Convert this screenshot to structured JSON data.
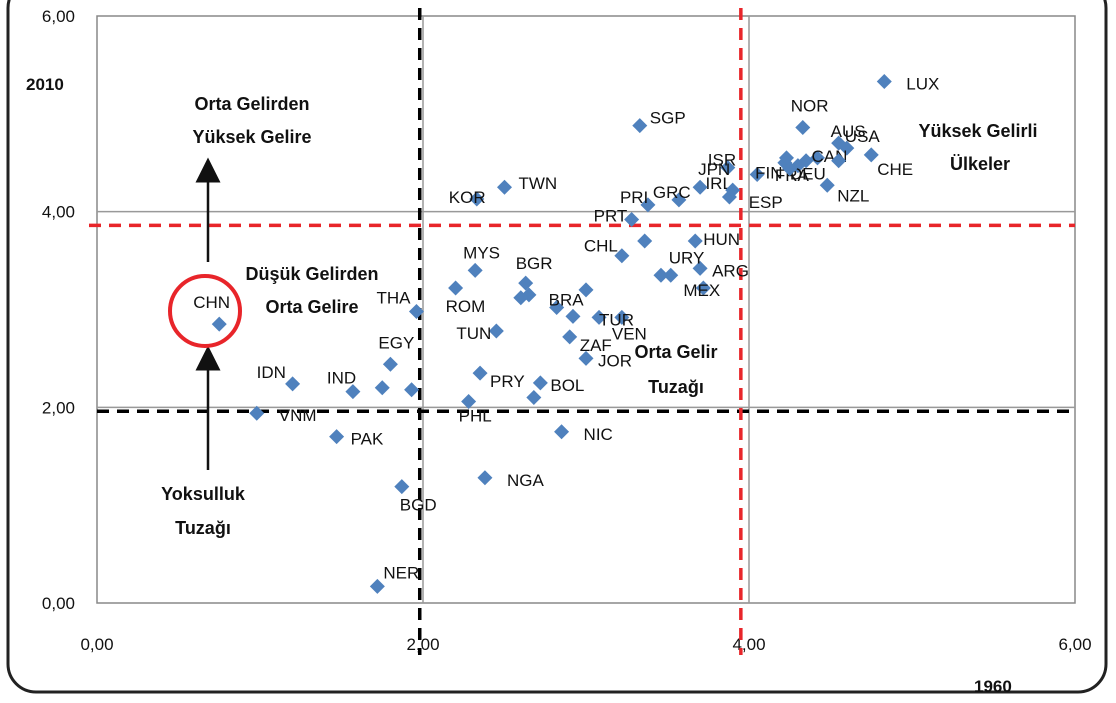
{
  "chart_data": {
    "type": "scatter",
    "xlabel": "1960",
    "ylabel": "2010",
    "xlim": [
      0,
      6
    ],
    "ylim": [
      0,
      6
    ],
    "x_ticks": [
      "0,00",
      "2,00",
      "4,00",
      "6,00"
    ],
    "y_ticks": [
      "0,00",
      "2,00",
      "4,00",
      "6,00"
    ],
    "grid": true,
    "marker_color": "#4f81bd",
    "series": [
      {
        "points": [
          {
            "label": "LUX",
            "x": 4.83,
            "y": 5.33
          },
          {
            "label": "NOR",
            "x": 4.33,
            "y": 4.86
          },
          {
            "label": "AUS",
            "x": 4.55,
            "y": 4.7
          },
          {
            "label": "USA",
            "x": 4.6,
            "y": 4.65
          },
          {
            "label": "CAN",
            "x": 4.42,
            "y": 4.55
          },
          {
            "label": "CHE",
            "x": 4.75,
            "y": 4.58
          },
          {
            "label": "FIN",
            "x": 4.05,
            "y": 4.38
          },
          {
            "label": "FRA",
            "x": 4.22,
            "y": 4.5
          },
          {
            "label": "DEU",
            "x": 4.3,
            "y": 4.47
          },
          {
            "label": "NZL",
            "x": 4.48,
            "y": 4.27
          },
          {
            "label": "",
            "x": 4.25,
            "y": 4.44
          },
          {
            "label": "",
            "x": 4.35,
            "y": 4.52
          },
          {
            "label": "",
            "x": 4.55,
            "y": 4.52
          },
          {
            "label": "",
            "x": 4.23,
            "y": 4.55
          },
          {
            "label": "ISR",
            "x": 3.87,
            "y": 4.45
          },
          {
            "label": "IRL",
            "x": 3.88,
            "y": 4.15
          },
          {
            "label": "JPN",
            "x": 3.7,
            "y": 4.25
          },
          {
            "label": "ESP",
            "x": 3.9,
            "y": 4.22
          },
          {
            "label": "GRC",
            "x": 3.57,
            "y": 4.12
          },
          {
            "label": "PRI",
            "x": 3.38,
            "y": 4.07
          },
          {
            "label": "SGP",
            "x": 3.33,
            "y": 4.88
          },
          {
            "label": "PRT",
            "x": 3.28,
            "y": 3.92
          },
          {
            "label": "TWN",
            "x": 2.5,
            "y": 4.25
          },
          {
            "label": "KOR",
            "x": 2.33,
            "y": 4.13
          },
          {
            "label": "HUN",
            "x": 3.67,
            "y": 3.7
          },
          {
            "label": "CHL",
            "x": 3.22,
            "y": 3.55
          },
          {
            "label": "",
            "x": 3.36,
            "y": 3.7
          },
          {
            "label": "ARG",
            "x": 3.7,
            "y": 3.42
          },
          {
            "label": "URY",
            "x": 3.52,
            "y": 3.35
          },
          {
            "label": "",
            "x": 3.46,
            "y": 3.35
          },
          {
            "label": "MEX",
            "x": 3.72,
            "y": 3.22
          },
          {
            "label": "VEN",
            "x": 3.22,
            "y": 2.92
          },
          {
            "label": "MYS",
            "x": 2.32,
            "y": 3.4
          },
          {
            "label": "BGR",
            "x": 2.63,
            "y": 3.27
          },
          {
            "label": "",
            "x": 2.65,
            "y": 3.15
          },
          {
            "label": "",
            "x": 2.6,
            "y": 3.12
          },
          {
            "label": "ROM",
            "x": 2.2,
            "y": 3.22
          },
          {
            "label": "BRA",
            "x": 2.82,
            "y": 3.02
          },
          {
            "label": "TUR",
            "x": 3.08,
            "y": 2.92
          },
          {
            "label": "",
            "x": 3.0,
            "y": 3.2
          },
          {
            "label": "",
            "x": 2.92,
            "y": 2.93
          },
          {
            "label": "ZAF",
            "x": 2.9,
            "y": 2.72
          },
          {
            "label": "TUN",
            "x": 2.45,
            "y": 2.78
          },
          {
            "label": "JOR",
            "x": 3.0,
            "y": 2.5
          },
          {
            "label": "PRY",
            "x": 2.35,
            "y": 2.35
          },
          {
            "label": "BOL",
            "x": 2.72,
            "y": 2.25
          },
          {
            "label": "",
            "x": 2.68,
            "y": 2.1
          },
          {
            "label": "PHL",
            "x": 2.28,
            "y": 2.06
          },
          {
            "label": "NIC",
            "x": 2.85,
            "y": 1.75
          },
          {
            "label": "NGA",
            "x": 2.38,
            "y": 1.28
          },
          {
            "label": "THA",
            "x": 1.96,
            "y": 2.98
          },
          {
            "label": "EGY",
            "x": 1.8,
            "y": 2.44
          },
          {
            "label": "IND",
            "x": 1.57,
            "y": 2.16
          },
          {
            "label": "",
            "x": 1.75,
            "y": 2.2
          },
          {
            "label": "",
            "x": 1.93,
            "y": 2.18
          },
          {
            "label": "IDN",
            "x": 1.2,
            "y": 2.24
          },
          {
            "label": "VNM",
            "x": 0.98,
            "y": 1.94
          },
          {
            "label": "PAK",
            "x": 1.47,
            "y": 1.7
          },
          {
            "label": "BGD",
            "x": 1.87,
            "y": 1.19
          },
          {
            "label": "NER",
            "x": 1.72,
            "y": 0.17
          },
          {
            "label": "CHN",
            "x": 0.75,
            "y": 2.85
          }
        ]
      }
    ],
    "annotations": {
      "orta_gelirden_l1": "Orta Gelirden",
      "orta_gelirden_l2": "Yüksek Gelire",
      "dusuk_l1": "Düşük Gelirden",
      "dusuk_l2": "Orta Gelire",
      "yuksek_l1": "Yüksek Gelirli",
      "yuksek_l2": "Ülkeler",
      "orta_tuzak_l1": "Orta Gelir",
      "orta_tuzak_l2": "Tuzağı",
      "yoksulluk_l1": "Yoksulluk",
      "yoksulluk_l2": "Tuzağı"
    },
    "threshold_lines": {
      "black": {
        "x": 1.98,
        "y": 1.96,
        "color": "#000000"
      },
      "red": {
        "x": 3.95,
        "y": 3.86,
        "color": "#e8252a"
      }
    },
    "highlight_color": "#e8252a"
  }
}
